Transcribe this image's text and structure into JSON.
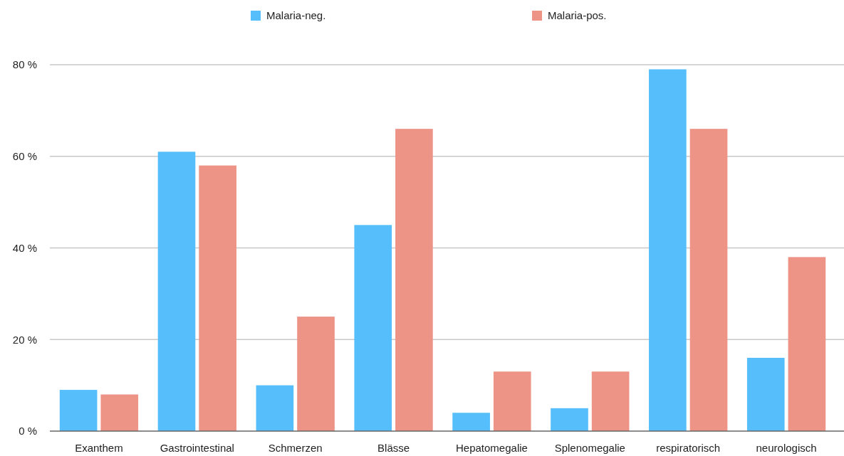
{
  "chart_data": {
    "type": "bar",
    "categories": [
      "Exanthem",
      "Gastrointestinal",
      "Schmerzen",
      "Blässe",
      "Hepatomegalie",
      "Splenomegalie",
      "respiratorisch",
      "neurologisch"
    ],
    "series": [
      {
        "name": "Malaria-neg.",
        "color": "#56bffb",
        "values": [
          9,
          61,
          10,
          45,
          4,
          5,
          79,
          16
        ]
      },
      {
        "name": "Malaria-pos.",
        "color": "#ed9487",
        "values": [
          8,
          58,
          25,
          66,
          13,
          13,
          66,
          38
        ]
      }
    ],
    "ylim": [
      0,
      80
    ],
    "yticks": [
      {
        "value": 0,
        "label": "0 %"
      },
      {
        "value": 20,
        "label": "20 %"
      },
      {
        "value": 40,
        "label": "40 %"
      },
      {
        "value": 60,
        "label": "60 %"
      },
      {
        "value": 80,
        "label": "80 %"
      }
    ],
    "grid": "y",
    "legend": "top"
  }
}
